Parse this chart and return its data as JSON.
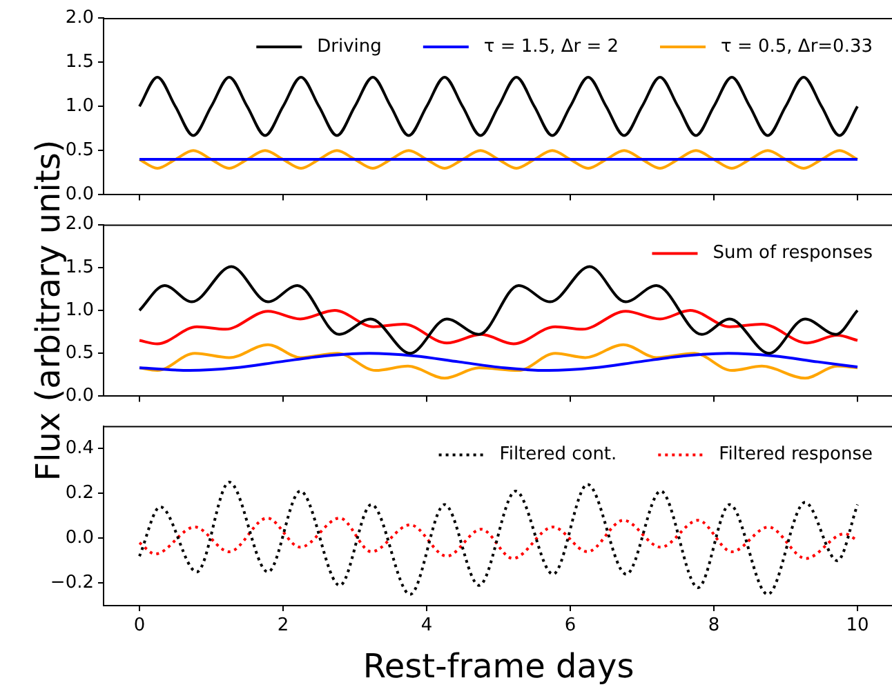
{
  "chart_data": [
    {
      "type": "line",
      "legend": "top right",
      "tick_labels": "y",
      "xlim": [
        -0.5,
        10.5
      ],
      "xticks": [
        0,
        2,
        4,
        6,
        8,
        10
      ],
      "ylim": [
        0,
        2
      ],
      "yticks": [
        {
          "value": 0,
          "label": "0.0"
        },
        {
          "value": 0.5,
          "label": "0.5"
        },
        {
          "value": 1,
          "label": "1.0"
        },
        {
          "value": 1.5,
          "label": "1.5"
        },
        {
          "value": 2,
          "label": "2.0"
        }
      ],
      "x": [
        0,
        0.25,
        0.5,
        0.75,
        1,
        1.25,
        1.5,
        1.75,
        2,
        2.25,
        2.5,
        2.75,
        3,
        3.25,
        3.5,
        3.75,
        4,
        4.25,
        4.5,
        4.75,
        5,
        5.25,
        5.5,
        5.75,
        6,
        6.25,
        6.5,
        6.75,
        7,
        7.25,
        7.5,
        7.75,
        8,
        8.25,
        8.5,
        8.75,
        9,
        9.25,
        9.5,
        9.75,
        10
      ],
      "series": [
        {
          "name": "Driving",
          "color": "#000000",
          "values": [
            1,
            1.33,
            1,
            0.67,
            1,
            1.33,
            1,
            0.67,
            1,
            1.33,
            1,
            0.67,
            1,
            1.33,
            1,
            0.67,
            1,
            1.33,
            1,
            0.67,
            1,
            1.33,
            1,
            0.67,
            1,
            1.33,
            1,
            0.67,
            1,
            1.33,
            1,
            0.67,
            1,
            1.33,
            1,
            0.67,
            1,
            1.33,
            1,
            0.67,
            1
          ]
        },
        {
          "name": "τ = 1.5, Δr = 2",
          "color": "#0000ff",
          "x": [
            0,
            10
          ],
          "values": [
            0.4,
            0.4
          ]
        },
        {
          "name": "τ = 0.5, Δr=0.33",
          "color": "#ffa500",
          "values": [
            0.4,
            0.3,
            0.4,
            0.5,
            0.4,
            0.3,
            0.4,
            0.5,
            0.4,
            0.3,
            0.4,
            0.5,
            0.4,
            0.3,
            0.4,
            0.5,
            0.4,
            0.3,
            0.4,
            0.5,
            0.4,
            0.3,
            0.4,
            0.5,
            0.4,
            0.3,
            0.4,
            0.5,
            0.4,
            0.3,
            0.4,
            0.5,
            0.4,
            0.3,
            0.4,
            0.5,
            0.4,
            0.3,
            0.4,
            0.5,
            0.4
          ]
        }
      ]
    },
    {
      "type": "line",
      "legend": "top right",
      "tick_labels": "y",
      "ylabel": "Flux (arbitrary units)",
      "xlim": [
        -0.5,
        10.5
      ],
      "xticks": [
        0,
        2,
        4,
        6,
        8,
        10
      ],
      "ylim": [
        0,
        2
      ],
      "yticks": [
        {
          "value": 0,
          "label": "0.0"
        },
        {
          "value": 0.5,
          "label": "0.5"
        },
        {
          "value": 1,
          "label": "1.0"
        },
        {
          "value": 1.5,
          "label": "1.5"
        },
        {
          "value": 2,
          "label": "2.0"
        }
      ],
      "series": [
        {
          "color": "#000000",
          "x": [
            0,
            0.35,
            0.73,
            1.28,
            1.79,
            2.2,
            2.78,
            3.22,
            3.77,
            4.28,
            4.73,
            5.28,
            5.72,
            6.27,
            6.77,
            7.2,
            7.83,
            8.22,
            8.77,
            9.27,
            9.7,
            10
          ],
          "values": [
            1,
            1.29,
            1.1,
            1.51,
            1.1,
            1.29,
            0.72,
            0.9,
            0.5,
            0.9,
            0.72,
            1.29,
            1.1,
            1.51,
            1.1,
            1.29,
            0.72,
            0.9,
            0.5,
            0.9,
            0.72,
            1
          ]
        },
        {
          "color": "#0000ff",
          "x": [
            0,
            0.7,
            1.33,
            1.95,
            2.58,
            3.2,
            3.83,
            4.45,
            5.08,
            5.7,
            6.33,
            6.95,
            7.58,
            8.2,
            8.83,
            9.45,
            10
          ],
          "values": [
            0.33,
            0.3,
            0.33,
            0.4,
            0.47,
            0.5,
            0.47,
            0.4,
            0.33,
            0.3,
            0.33,
            0.4,
            0.47,
            0.5,
            0.47,
            0.4,
            0.34
          ]
        },
        {
          "color": "#ffa500",
          "x": [
            0,
            0.25,
            0.77,
            1.25,
            1.79,
            2.24,
            2.76,
            3.29,
            3.74,
            4.25,
            4.73,
            5.28,
            5.79,
            6.21,
            6.74,
            7.2,
            7.73,
            8.25,
            8.67,
            9.27,
            9.72,
            10
          ],
          "values": [
            0.33,
            0.3,
            0.5,
            0.45,
            0.6,
            0.45,
            0.5,
            0.3,
            0.35,
            0.21,
            0.33,
            0.3,
            0.5,
            0.45,
            0.6,
            0.45,
            0.5,
            0.3,
            0.35,
            0.21,
            0.35,
            0.33
          ]
        },
        {
          "name": "Sum of responses",
          "color": "#ff0000",
          "x": [
            0,
            0.25,
            0.8,
            1.2,
            1.79,
            2.24,
            2.72,
            3.26,
            3.68,
            4.28,
            4.76,
            5.21,
            5.79,
            6.17,
            6.77,
            7.25,
            7.67,
            8.22,
            8.67,
            9.3,
            9.72,
            10
          ],
          "values": [
            0.65,
            0.61,
            0.81,
            0.78,
            0.99,
            0.9,
            1.0,
            0.81,
            0.84,
            0.62,
            0.72,
            0.61,
            0.81,
            0.78,
            0.99,
            0.9,
            1.0,
            0.81,
            0.84,
            0.62,
            0.71,
            0.65
          ]
        }
      ]
    },
    {
      "type": "line",
      "legend": "top right",
      "line_style": "dotted",
      "xlabel": "Rest-frame days",
      "xlim": [
        -0.5,
        10.5
      ],
      "xticks": [
        0,
        2,
        4,
        6,
        8,
        10
      ],
      "ylim": [
        -0.3,
        0.5
      ],
      "yticks": [
        {
          "value": -0.2,
          "label": "−0.2"
        },
        {
          "value": 0,
          "label": "0.0"
        },
        0.2,
        0.4
      ],
      "series": [
        {
          "name": "Filtered cont.",
          "color": "#000000",
          "x": [
            0,
            0.29,
            0.8,
            1.25,
            1.79,
            2.24,
            2.79,
            3.23,
            3.77,
            4.25,
            4.73,
            5.24,
            5.76,
            6.24,
            6.78,
            7.26,
            7.78,
            8.22,
            8.75,
            9.27,
            9.72,
            10
          ],
          "values": [
            -0.08,
            0.14,
            -0.15,
            0.25,
            -0.15,
            0.21,
            -0.21,
            0.15,
            -0.25,
            0.15,
            -0.21,
            0.21,
            -0.16,
            0.24,
            -0.16,
            0.21,
            -0.22,
            0.15,
            -0.25,
            0.16,
            -0.1,
            0.15
          ]
        },
        {
          "name": "Filtered response",
          "color": "#ff0000",
          "x": [
            0,
            0.22,
            0.77,
            1.25,
            1.78,
            2.24,
            2.79,
            3.23,
            3.77,
            4.28,
            4.76,
            5.2,
            5.76,
            6.24,
            6.74,
            7.26,
            7.78,
            8.25,
            8.76,
            9.28,
            9.82,
            10
          ],
          "values": [
            -0.02,
            -0.07,
            0.05,
            -0.06,
            0.09,
            -0.04,
            0.09,
            -0.06,
            0.06,
            -0.08,
            0.04,
            -0.09,
            0.05,
            -0.06,
            0.08,
            -0.04,
            0.08,
            -0.06,
            0.05,
            -0.09,
            0.02,
            -0.01
          ]
        }
      ]
    }
  ]
}
